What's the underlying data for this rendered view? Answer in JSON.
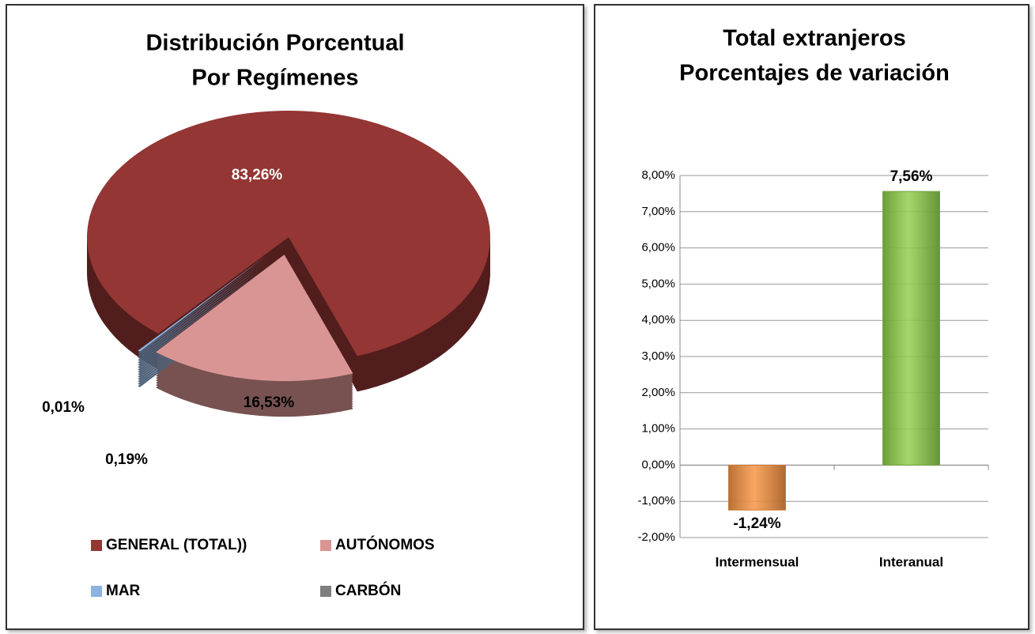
{
  "chart_data": [
    {
      "type": "pie",
      "title": [
        "Distribución Porcentual",
        "Por Regímenes"
      ],
      "categories": [
        "GENERAL (TOTAL))",
        "AUTÓNOMOS",
        "MAR",
        "CARBÓN"
      ],
      "values": [
        83.26,
        16.53,
        0.19,
        0.01
      ],
      "value_labels": [
        "83,26%",
        "16,53%",
        "0,19%",
        "0,01%"
      ],
      "colors": [
        "#943634",
        "#d99594",
        "#8db3e2",
        "#7f7f7f"
      ],
      "legend": "bottom"
    },
    {
      "type": "bar",
      "title": [
        "Total extranjeros",
        "Porcentajes de variación"
      ],
      "categories": [
        "Intermensual",
        "Interanual"
      ],
      "values": [
        -1.24,
        7.56
      ],
      "value_labels": [
        "-1,24%",
        "7,56%"
      ],
      "colors": [
        "#f79646",
        "#92d050"
      ],
      "ylim": [
        -2,
        8
      ],
      "yticks": [
        {
          "value": -2,
          "label": "-2,00%"
        },
        {
          "value": -1,
          "label": "-1,00%"
        },
        {
          "value": 0,
          "label": "0,00%"
        },
        {
          "value": 1,
          "label": "1,00%"
        },
        {
          "value": 2,
          "label": "2,00%"
        },
        {
          "value": 3,
          "label": "3,00%"
        },
        {
          "value": 4,
          "label": "4,00%"
        },
        {
          "value": 5,
          "label": "5,00%"
        },
        {
          "value": 6,
          "label": "6,00%"
        },
        {
          "value": 7,
          "label": "7,00%"
        },
        {
          "value": 8,
          "label": "8,00%"
        }
      ],
      "grid": true
    }
  ]
}
